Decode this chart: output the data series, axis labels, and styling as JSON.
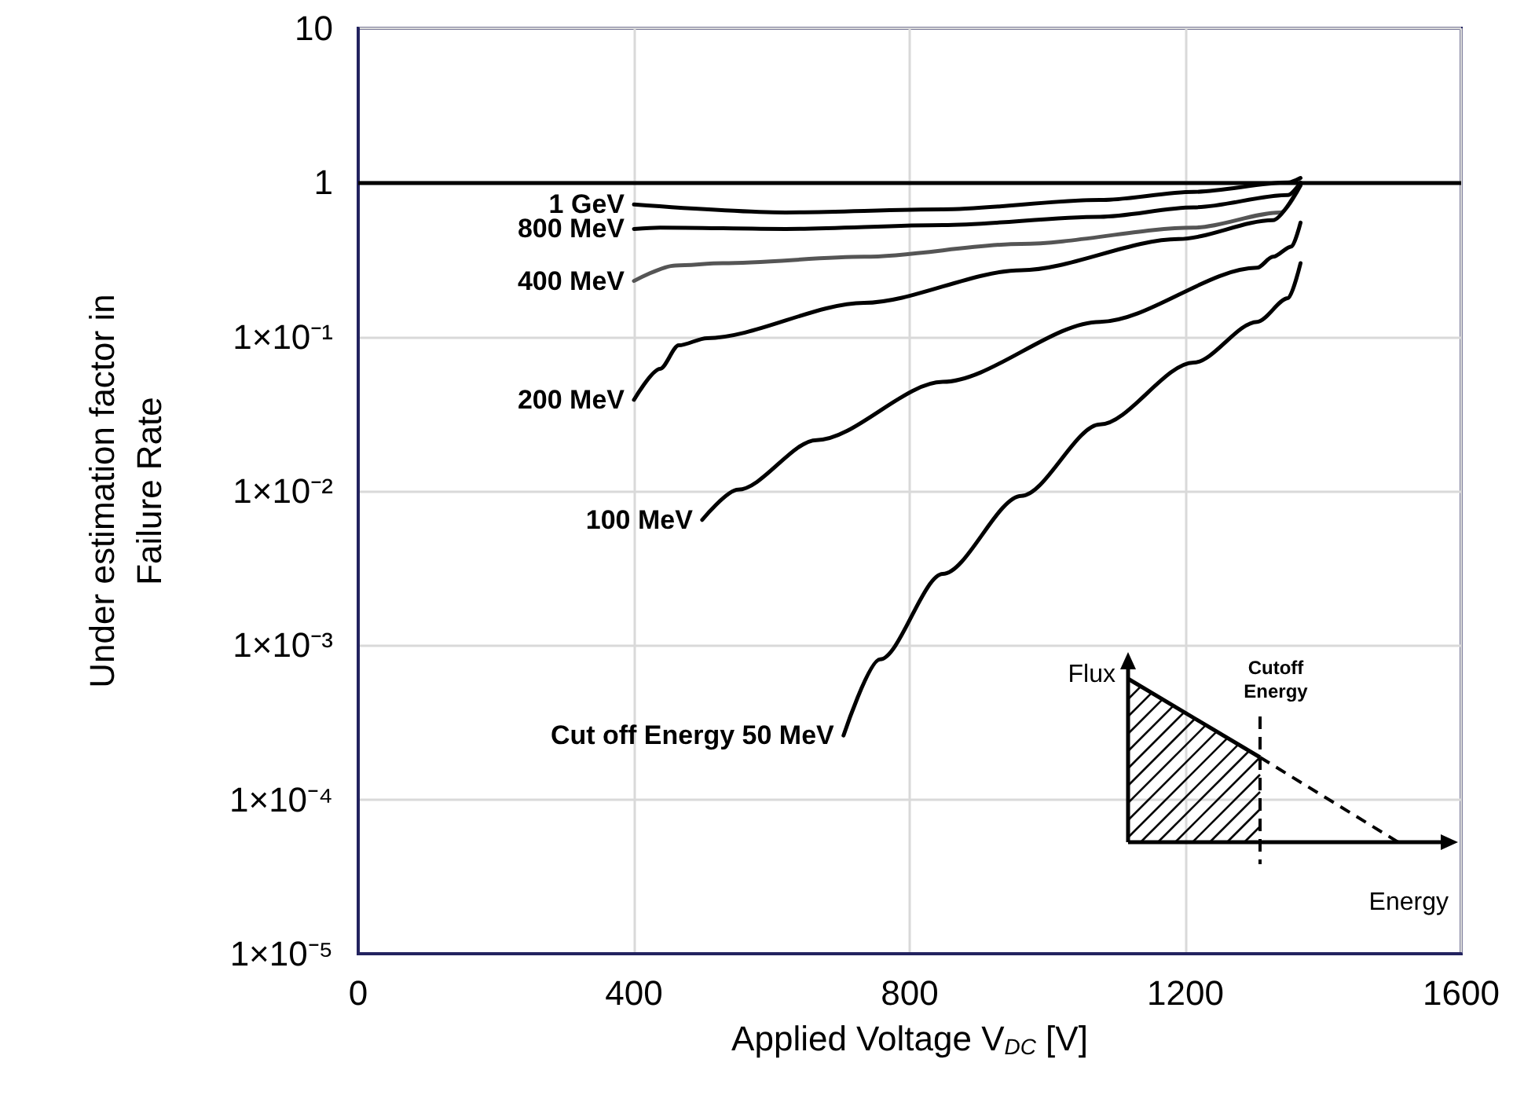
{
  "chart_data": {
    "type": "line",
    "xlabel": "Applied Voltage V$_{DC}$ [V]",
    "ylabel": "Under estimation factor in\nFailure Rate",
    "xlim": [
      0,
      1600
    ],
    "xticks": [
      0,
      400,
      800,
      1200,
      1600
    ],
    "ylim": [
      1e-05,
      10
    ],
    "log": "y",
    "yticks": [
      {
        "value": 1e-05,
        "label": "1×10⁻⁵"
      },
      {
        "value": 0.0001,
        "label": "1×10⁻⁴"
      },
      {
        "value": 0.001,
        "label": "1×10⁻³"
      },
      {
        "value": 0.01,
        "label": "1×10⁻²"
      },
      {
        "value": 0.1,
        "label": "1×10⁻¹"
      },
      1,
      10
    ],
    "grid": true,
    "legend": false,
    "marker": "none",
    "line_style": "solid",
    "ref_lines": [
      {
        "axis": "y",
        "value": 1,
        "color": "#000000"
      }
    ],
    "series": [
      {
        "name": "1 GeV",
        "color": "#000000",
        "x": [
          400,
          620,
          848,
          1076,
          1212,
          1349,
          1367
        ],
        "values": [
          0.72,
          0.64,
          0.67,
          0.77,
          0.87,
          1.0,
          1.07
        ]
      },
      {
        "name": "800 MeV",
        "color": "#000000",
        "x": [
          400,
          438,
          620,
          848,
          1076,
          1212,
          1349,
          1367
        ],
        "values": [
          0.5,
          0.51,
          0.5,
          0.53,
          0.6,
          0.69,
          0.83,
          1.0
        ]
      },
      {
        "name": "400 MeV",
        "color": "#555555",
        "x": [
          400,
          460,
          529,
          734,
          962,
          1212,
          1338,
          1367
        ],
        "values": [
          0.23,
          0.29,
          0.3,
          0.33,
          0.4,
          0.51,
          0.64,
          0.96
        ]
      },
      {
        "name": "200 MeV",
        "color": "#000000",
        "x": [
          400,
          438,
          465,
          506,
          734,
          962,
          1190,
          1327,
          1367
        ],
        "values": [
          0.039,
          0.062,
          0.088,
          0.098,
          0.166,
          0.27,
          0.43,
          0.57,
          0.96
        ]
      },
      {
        "name": "100 MeV",
        "color": "#000000",
        "x": [
          499,
          551,
          665,
          848,
          1076,
          1304,
          1327,
          1354,
          1367
        ],
        "values": [
          0.0065,
          0.0102,
          0.0214,
          0.051,
          0.125,
          0.28,
          0.33,
          0.385,
          0.55
        ]
      },
      {
        "name": "Cut off Energy 50 MeV",
        "color": "#000000",
        "x": [
          704,
          757,
          848,
          962,
          1076,
          1212,
          1304,
          1349,
          1367
        ],
        "values": [
          0.00026,
          0.00081,
          0.0029,
          0.0093,
          0.027,
          0.068,
          0.125,
          0.178,
          0.3
        ]
      }
    ],
    "annotations": [
      "Flux",
      "Cutoff\nEnergy",
      "Energy"
    ]
  }
}
